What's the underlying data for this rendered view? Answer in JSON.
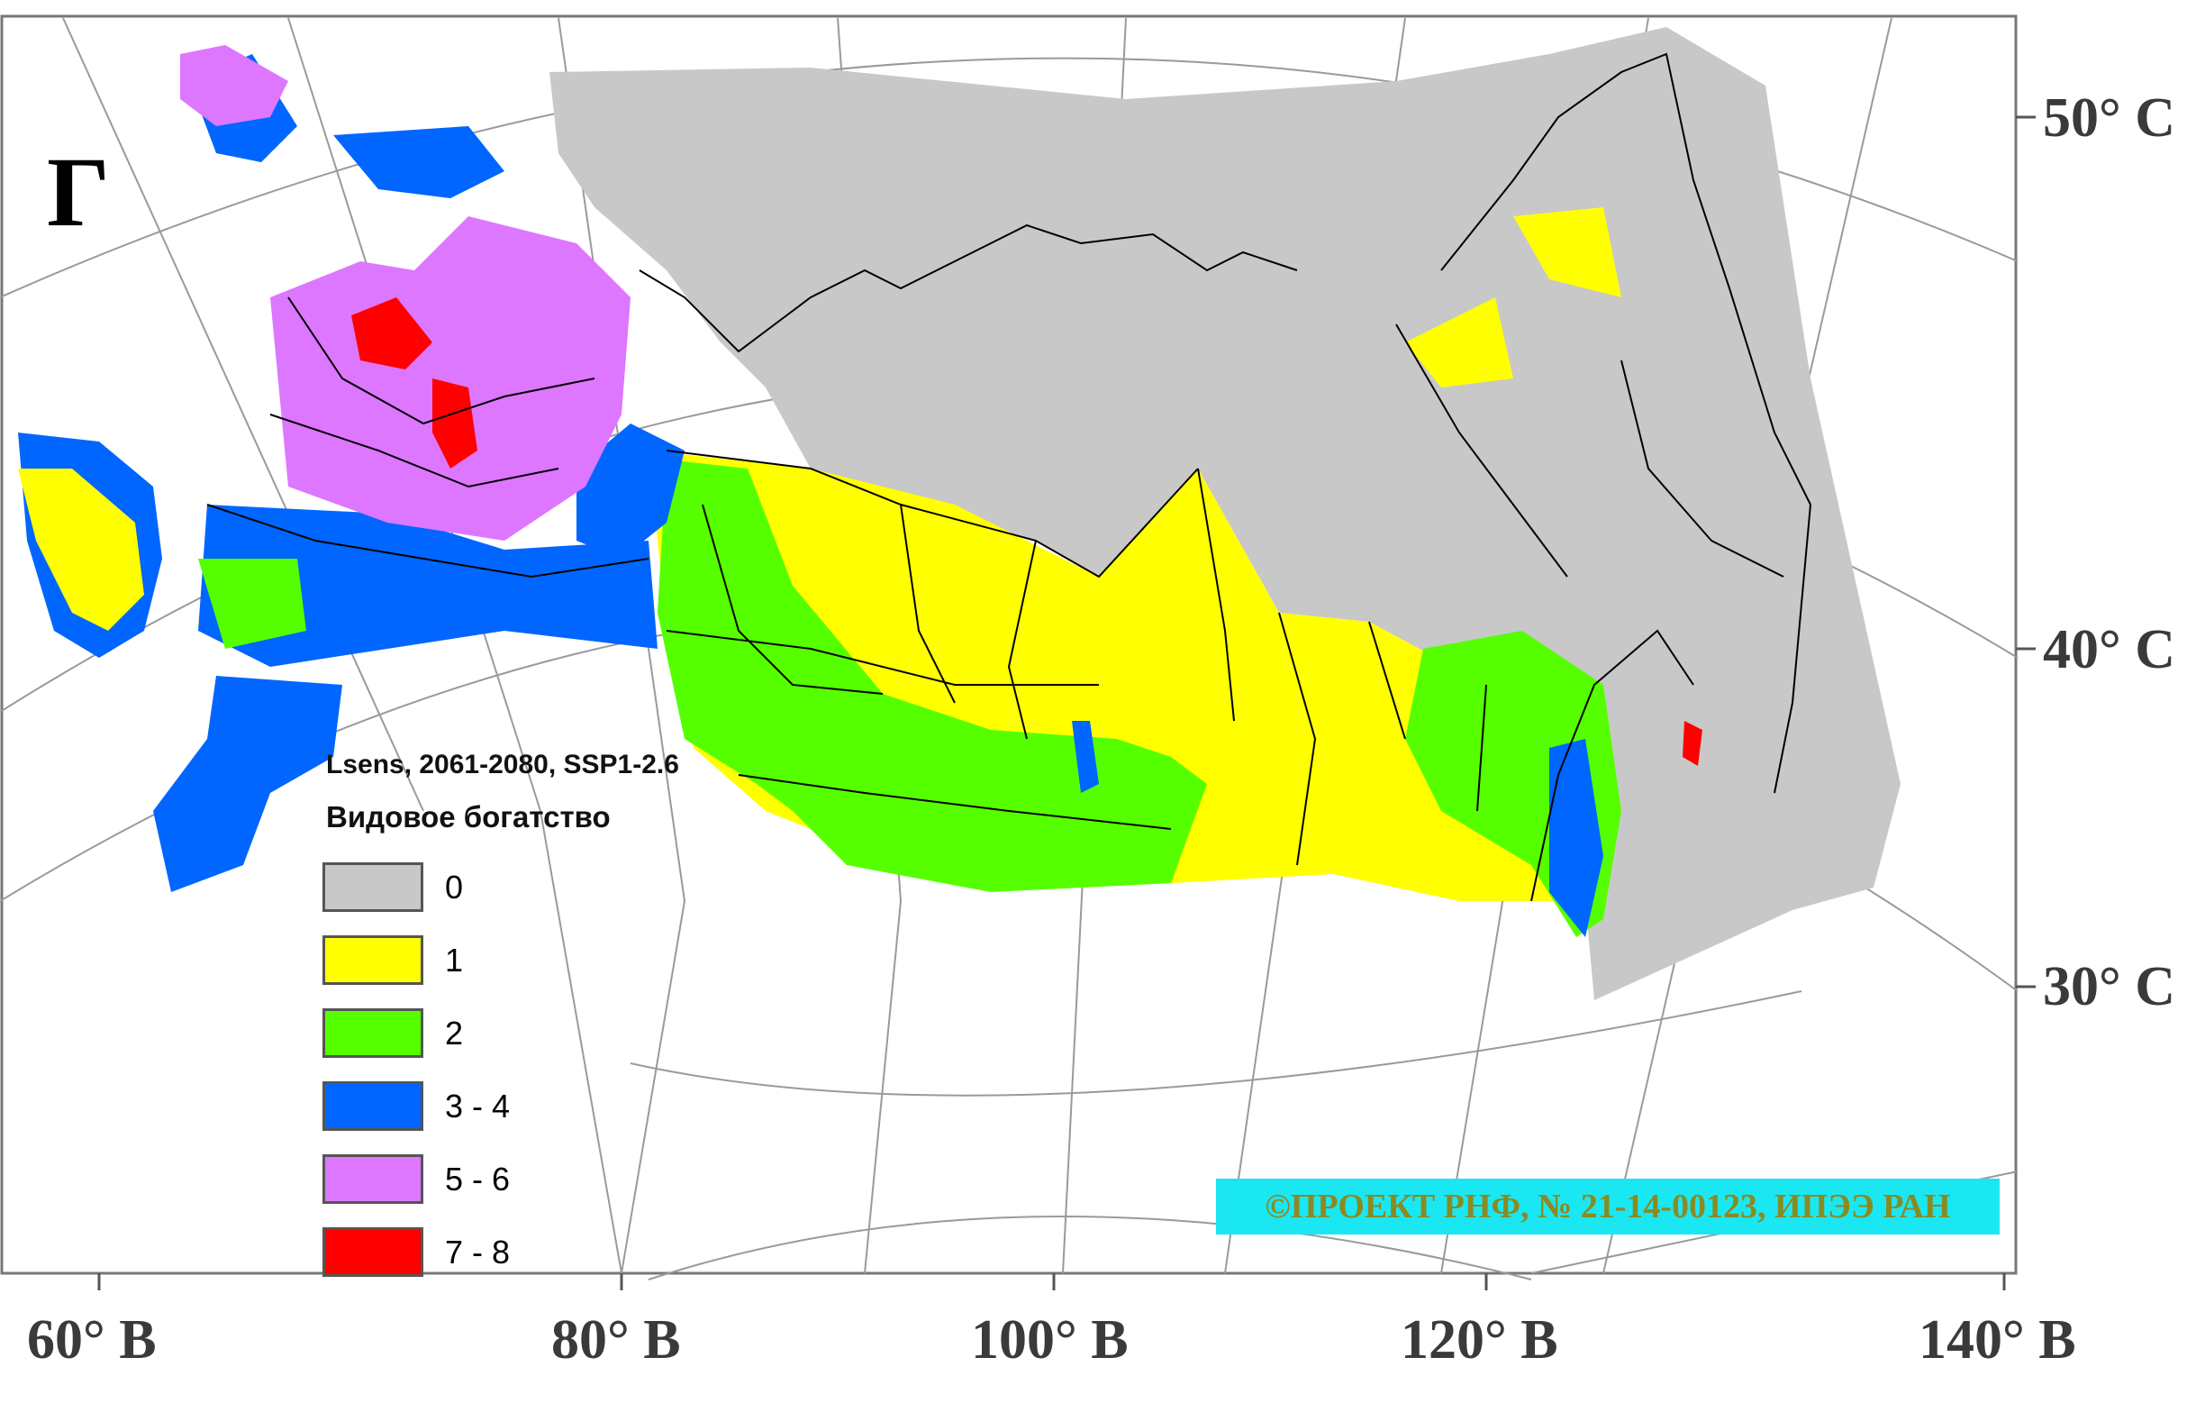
{
  "panel_letter": "Г",
  "legend": {
    "scenario": "Lsens, 2061-2080, SSP1-2.6",
    "title": "Видовое богатство",
    "classes": [
      {
        "label": "0",
        "color": "#c8c8c8"
      },
      {
        "label": "1",
        "color": "#ffff00"
      },
      {
        "label": "2",
        "color": "#55ff00"
      },
      {
        "label": "3 - 4",
        "color": "#0066ff"
      },
      {
        "label": "5 - 6",
        "color": "#dd77ff"
      },
      {
        "label": "7 - 8",
        "color": "#ff0000"
      }
    ]
  },
  "latitude_labels": [
    "50° С",
    "40° С",
    "30° С"
  ],
  "longitude_labels": [
    "60° В",
    "80° В",
    "100° В",
    "120° В",
    "140° В"
  ],
  "credit": "©ПРОЕКТ РНФ, № 21-14-00123, ИПЭЭ РАН"
}
